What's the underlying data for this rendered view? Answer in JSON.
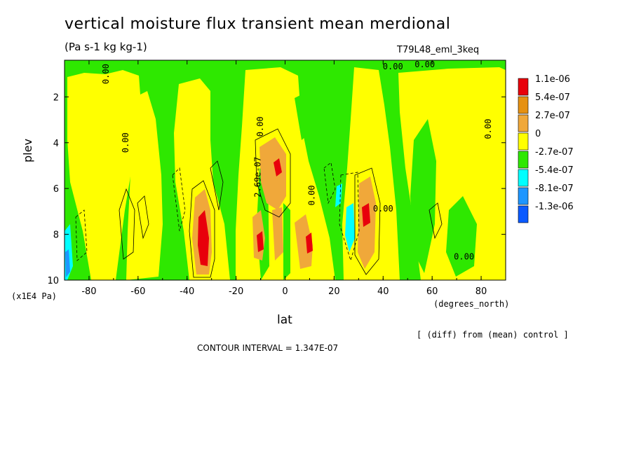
{
  "chart_data": {
    "type": "heatmap",
    "title": "vertical moisture flux transient mean merdional",
    "subtitle": "(Pa s-1 kg kg-1)",
    "run_label": "T79L48_eml_3keq",
    "xlabel": "lat",
    "x_units": "(degrees_north)",
    "ylabel": "plev",
    "y_units": "(x1E4 Pa)",
    "xlim": [
      -90,
      90
    ],
    "ylim": [
      10,
      0.4
    ],
    "x_ticks": [
      -80,
      -60,
      -40,
      -20,
      0,
      20,
      40,
      60,
      80
    ],
    "x_tick_labels": [
      "-80",
      "-60",
      "-40",
      "-20",
      "0",
      "20",
      "40",
      "60",
      "80"
    ],
    "y_ticks": [
      2,
      4,
      6,
      8,
      10
    ],
    "y_tick_labels": [
      "2",
      "4",
      "6",
      "8",
      "10"
    ],
    "legend": {
      "position": "right",
      "levels": [
        {
          "label": "1.1e-06",
          "color": "#e8000b"
        },
        {
          "label": "5.4e-07",
          "color": "#e69112"
        },
        {
          "label": "2.7e-07",
          "color": "#f0a83a"
        },
        {
          "label": "0",
          "color": "#ffff00"
        },
        {
          "label": "-2.7e-07",
          "color": "#2ee800"
        },
        {
          "label": "-5.4e-07",
          "color": "#00ffff"
        },
        {
          "label": "-8.1e-07",
          "color": "#1e96ff"
        },
        {
          "label": "-1.3e-06",
          "color": "#0a5aff"
        }
      ]
    },
    "contour_labels": [
      {
        "text": "0.00",
        "lat": -72,
        "p": 1.0
      },
      {
        "text": "0.00",
        "lat": -64,
        "p": 4.0
      },
      {
        "text": "0.00",
        "lat": -9,
        "p": 3.3
      },
      {
        "text": "2.69e-07",
        "lat": -10,
        "p": 5.5
      },
      {
        "text": "0.00",
        "lat": 12,
        "p": 6.3
      },
      {
        "text": "0.00",
        "lat": 40,
        "p": 7.0
      },
      {
        "text": "0.00",
        "lat": 44,
        "p": 0.8
      },
      {
        "text": "0.00",
        "lat": 57,
        "p": 0.7
      },
      {
        "text": "0.00",
        "lat": 84,
        "p": 3.4
      },
      {
        "text": "0.00",
        "lat": 73,
        "p": 9.1
      }
    ],
    "features": [
      {
        "lat": -33,
        "p": 8.0,
        "value": 1.1e-06
      },
      {
        "lat": -3,
        "p": 5.0,
        "value": 1.1e-06
      },
      {
        "lat": -10,
        "p": 8.4,
        "value": 1.1e-06
      },
      {
        "lat": 10,
        "p": 8.4,
        "value": 1.1e-06
      },
      {
        "lat": 33,
        "p": 7.2,
        "value": 1.1e-06
      },
      {
        "lat": 25,
        "p": 8.0,
        "value": -5.4e-07
      },
      {
        "lat": 23,
        "p": 6.4,
        "value": -5.4e-07
      },
      {
        "lat": -88,
        "p": 8.5,
        "value": -5.4e-07
      }
    ]
  },
  "footer": {
    "note": "[ (diff) from (mean) control ]",
    "contour_interval": "CONTOUR INTERVAL = 1.347E-07"
  }
}
